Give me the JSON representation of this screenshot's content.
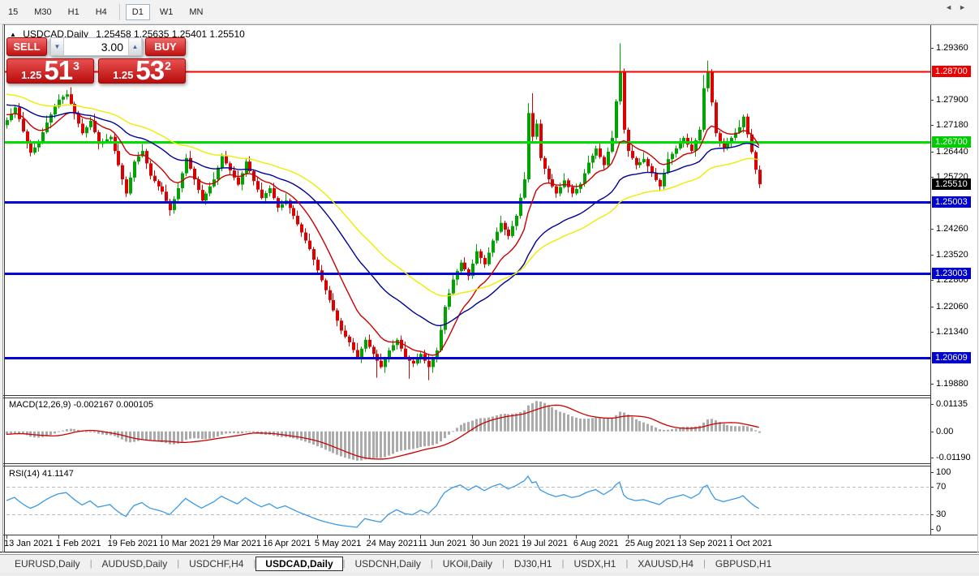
{
  "toolbar": {
    "timeframes": [
      {
        "label": "15",
        "active": false
      },
      {
        "label": "M30",
        "active": false
      },
      {
        "label": "H1",
        "active": false
      },
      {
        "label": "H4",
        "active": false
      },
      {
        "label": "D1",
        "active": true
      },
      {
        "label": "W1",
        "active": false
      },
      {
        "label": "MN",
        "active": false
      }
    ]
  },
  "chart": {
    "collapse_icon": "▲",
    "symbol_title": "USDCAD,Daily",
    "ohlc_line": "1.25458 1.25635 1.25401 1.25510"
  },
  "trade_panel": {
    "sell_label": "SELL",
    "buy_label": "BUY",
    "volume": "3.00",
    "spin_down_icon": "▼",
    "spin_up_icon": "▲",
    "sell_price_small": "1.25",
    "sell_price_big": "51",
    "sell_price_sup": "3",
    "buy_price_small": "1.25",
    "buy_price_big": "53",
    "buy_price_sup": "2"
  },
  "price_axis": {
    "ticks": [
      "1.29360",
      "1.27900",
      "1.27180",
      "1.26440",
      "1.25720",
      "1.24260",
      "1.23520",
      "1.22800",
      "1.22060",
      "1.21340",
      "1.19880"
    ],
    "flags": [
      {
        "text": "1.28700",
        "bg": "#EE0000"
      },
      {
        "text": "1.26700",
        "bg": "#00CC00"
      },
      {
        "text": "1.25510",
        "bg": "#000000"
      },
      {
        "text": "1.25003",
        "bg": "#0000CC"
      },
      {
        "text": "1.23003",
        "bg": "#0000CC"
      },
      {
        "text": "1.20609",
        "bg": "#0000CC"
      }
    ]
  },
  "indicator_macd": {
    "label": "MACD(12,26,9) -0.002167 0.000105",
    "axis": [
      "0.01135",
      "0.00",
      "-0.01190"
    ]
  },
  "indicator_rsi": {
    "label": "RSI(14) 41.1147",
    "axis": [
      "100",
      "70",
      "30",
      "0"
    ]
  },
  "tabs": {
    "items": [
      {
        "label": "EURUSD,Daily",
        "active": false
      },
      {
        "label": "AUDUSD,Daily",
        "active": false
      },
      {
        "label": "USDCHF,H4",
        "active": false
      },
      {
        "label": "USDCAD,Daily",
        "active": true
      },
      {
        "label": "USDCNH,Daily",
        "active": false
      },
      {
        "label": "UKOil,Daily",
        "active": false
      },
      {
        "label": "DJ30,H1",
        "active": false
      },
      {
        "label": "USDX,H1",
        "active": false
      },
      {
        "label": "XAUUSD,H4",
        "active": false
      },
      {
        "label": "GBPUSD,H1",
        "active": false
      }
    ],
    "prev_icon": "◄",
    "next_icon": "►"
  },
  "colors": {
    "up": "#00A400",
    "down": "#DD0000",
    "background": "#FFFFFF",
    "ma_fast": "#CC0000",
    "ma_mid": "#000099",
    "ma_slow": "#EDED00",
    "macd_hist": "#ABABAB",
    "macd_signal": "#CC0000",
    "rsi_line": "#3A99E8",
    "hline_red": "#FF0000",
    "hline_green": "#00DD00",
    "hline_blue": "#0000D8"
  },
  "chart_data": {
    "type": "candlestick",
    "title": "USDCAD,Daily",
    "ohlc_display": {
      "open": "1.25458",
      "high": "1.25635",
      "low": "1.25401",
      "close": "1.25510"
    },
    "x_labels": [
      "13 Jan 2021",
      "1 Feb 2021",
      "19 Feb 2021",
      "10 Mar 2021",
      "29 Mar 2021",
      "16 Apr 2021",
      "5 May 2021",
      "24 May 2021",
      "11 Jun 2021",
      "30 Jun 2021",
      "19 Jul 2021",
      "6 Aug 2021",
      "25 Aug 2021",
      "13 Sep 2021",
      "1 Oct 2021"
    ],
    "bars_per_label": 13,
    "y_axis_range": [
      1.1957,
      1.2998
    ],
    "horizontal_lines": [
      {
        "price": 1.287,
        "color": "#FF0000",
        "width": 2
      },
      {
        "price": 1.267,
        "color": "#00DD00",
        "width": 3
      },
      {
        "price": 1.25003,
        "color": "#0000D8",
        "width": 3
      },
      {
        "price": 1.23003,
        "color": "#0000D8",
        "width": 3
      },
      {
        "price": 1.20609,
        "color": "#0000D8",
        "width": 3
      }
    ],
    "moving_averages": [
      {
        "period": 13,
        "type": "ema",
        "color": "#CC0000",
        "seed": 1.275
      },
      {
        "period": 34,
        "type": "ema",
        "color": "#000099",
        "seed": 1.2778
      },
      {
        "period": 55,
        "type": "ema",
        "color": "#EDED00",
        "seed": 1.2808
      }
    ],
    "macd": {
      "fast": 12,
      "slow": 26,
      "signal": 9,
      "current_main": -0.002167,
      "current_signal": 0.000105
    },
    "rsi": {
      "period": 14,
      "levels": [
        70,
        30
      ],
      "current": 41.1147
    },
    "candles": [
      [
        1.2718,
        1.274,
        1.2708,
        1.2732
      ],
      [
        1.2732,
        1.2765,
        1.2727,
        1.275
      ],
      [
        1.275,
        1.2773,
        1.2738,
        1.2768
      ],
      [
        1.2768,
        1.278,
        1.2727,
        1.2735
      ],
      [
        1.2735,
        1.2755,
        1.2696,
        1.27
      ],
      [
        1.27,
        1.2706,
        1.2652,
        1.2668
      ],
      [
        1.2668,
        1.2676,
        1.263,
        1.264
      ],
      [
        1.264,
        1.267,
        1.2635,
        1.2655
      ],
      [
        1.2655,
        1.2677,
        1.2643,
        1.2672
      ],
      [
        1.2672,
        1.271,
        1.2664,
        1.2698
      ],
      [
        1.2698,
        1.2745,
        1.2694,
        1.2725
      ],
      [
        1.2725,
        1.2754,
        1.2709,
        1.2748
      ],
      [
        1.2748,
        1.2778,
        1.2738,
        1.277
      ],
      [
        1.277,
        1.2805,
        1.2765,
        1.279
      ],
      [
        1.279,
        1.2803,
        1.2778,
        1.2798
      ],
      [
        1.2798,
        1.2817,
        1.279,
        1.2805
      ],
      [
        1.2805,
        1.2825,
        1.2774,
        1.2778
      ],
      [
        1.2778,
        1.2784,
        1.2734,
        1.275
      ],
      [
        1.275,
        1.2758,
        1.2712,
        1.2722
      ],
      [
        1.2722,
        1.2737,
        1.269,
        1.2695
      ],
      [
        1.2695,
        1.2717,
        1.2683,
        1.2712
      ],
      [
        1.2712,
        1.2742,
        1.2704,
        1.273
      ],
      [
        1.273,
        1.275,
        1.2694,
        1.2698
      ],
      [
        1.2698,
        1.2704,
        1.2649,
        1.2665
      ],
      [
        1.2665,
        1.268,
        1.2655,
        1.2672
      ],
      [
        1.2672,
        1.2693,
        1.2667,
        1.2678
      ],
      [
        1.2678,
        1.269,
        1.2666,
        1.2685
      ],
      [
        1.2685,
        1.2697,
        1.2637,
        1.2645
      ],
      [
        1.2645,
        1.2665,
        1.2601,
        1.2605
      ],
      [
        1.2605,
        1.2611,
        1.2549,
        1.2565
      ],
      [
        1.2565,
        1.2573,
        1.2515,
        1.2525
      ],
      [
        1.2525,
        1.2585,
        1.252,
        1.257
      ],
      [
        1.257,
        1.262,
        1.2558,
        1.2615
      ],
      [
        1.2615,
        1.2642,
        1.2607,
        1.263
      ],
      [
        1.263,
        1.2665,
        1.2626,
        1.2645
      ],
      [
        1.2645,
        1.2651,
        1.2594,
        1.261
      ],
      [
        1.261,
        1.2618,
        1.2565,
        1.2575
      ],
      [
        1.2575,
        1.259,
        1.2555,
        1.256
      ],
      [
        1.256,
        1.2565,
        1.2533,
        1.2545
      ],
      [
        1.2545,
        1.2557,
        1.2522,
        1.253
      ],
      [
        1.253,
        1.255,
        1.25,
        1.2504
      ],
      [
        1.2504,
        1.251,
        1.2462,
        1.2478
      ],
      [
        1.2478,
        1.2517,
        1.2468,
        1.2509
      ],
      [
        1.2509,
        1.2555,
        1.2504,
        1.254
      ],
      [
        1.254,
        1.2587,
        1.2528,
        1.2582
      ],
      [
        1.2582,
        1.2637,
        1.2574,
        1.2625
      ],
      [
        1.2625,
        1.2645,
        1.2591,
        1.2595
      ],
      [
        1.2595,
        1.2601,
        1.2549,
        1.2565
      ],
      [
        1.2565,
        1.2573,
        1.2525,
        1.2535
      ],
      [
        1.2535,
        1.255,
        1.25,
        1.2505
      ],
      [
        1.2505,
        1.253,
        1.2493,
        1.2525
      ],
      [
        1.2525,
        1.2557,
        1.2517,
        1.2545
      ],
      [
        1.2545,
        1.2585,
        1.2541,
        1.2565
      ],
      [
        1.2565,
        1.2604,
        1.2549,
        1.2598
      ],
      [
        1.2598,
        1.2638,
        1.2588,
        1.263
      ],
      [
        1.263,
        1.2645,
        1.2605,
        1.261
      ],
      [
        1.261,
        1.2615,
        1.2578,
        1.259
      ],
      [
        1.259,
        1.2602,
        1.2562,
        1.257
      ],
      [
        1.257,
        1.259,
        1.2546,
        1.255
      ],
      [
        1.255,
        1.2588,
        1.2534,
        1.2582
      ],
      [
        1.2582,
        1.2623,
        1.2572,
        1.2615
      ],
      [
        1.2615,
        1.263,
        1.2583,
        1.2588
      ],
      [
        1.2588,
        1.2593,
        1.2548,
        1.256
      ],
      [
        1.256,
        1.2572,
        1.2528,
        1.2536
      ],
      [
        1.2536,
        1.2556,
        1.2508,
        1.2512
      ],
      [
        1.2512,
        1.2532,
        1.2496,
        1.2526
      ],
      [
        1.2526,
        1.2548,
        1.2516,
        1.254
      ],
      [
        1.254,
        1.2555,
        1.2507,
        1.2512
      ],
      [
        1.2512,
        1.2517,
        1.2473,
        1.2485
      ],
      [
        1.2485,
        1.2507,
        1.2477,
        1.2495
      ],
      [
        1.2495,
        1.2525,
        1.2491,
        1.2505
      ],
      [
        1.2505,
        1.2511,
        1.2468,
        1.2484
      ],
      [
        1.2484,
        1.2492,
        1.2452,
        1.2462
      ],
      [
        1.2462,
        1.2477,
        1.2433,
        1.2438
      ],
      [
        1.2438,
        1.2443,
        1.2403,
        1.2415
      ],
      [
        1.2415,
        1.2427,
        1.2384,
        1.2392
      ],
      [
        1.2392,
        1.2412,
        1.2364,
        1.2368
      ],
      [
        1.2368,
        1.2374,
        1.2322,
        1.2338
      ],
      [
        1.2338,
        1.2346,
        1.2298,
        1.2308
      ],
      [
        1.2308,
        1.2323,
        1.2275,
        1.228
      ],
      [
        1.228,
        1.2285,
        1.224,
        1.2252
      ],
      [
        1.2252,
        1.2264,
        1.2216,
        1.2224
      ],
      [
        1.2224,
        1.2244,
        1.2191,
        1.2195
      ],
      [
        1.2195,
        1.2201,
        1.215,
        1.2166
      ],
      [
        1.2166,
        1.2174,
        1.2128,
        1.2138
      ],
      [
        1.2138,
        1.2153,
        1.2116,
        1.2121
      ],
      [
        1.2121,
        1.2126,
        1.2093,
        1.2105
      ],
      [
        1.2105,
        1.2117,
        1.2075,
        1.2083
      ],
      [
        1.2083,
        1.2103,
        1.2058,
        1.2062
      ],
      [
        1.2062,
        1.2093,
        1.2046,
        1.2087
      ],
      [
        1.2087,
        1.212,
        1.2077,
        1.2112
      ],
      [
        1.2112,
        1.2127,
        1.2087,
        1.2092
      ],
      [
        1.2092,
        1.2097,
        1.206,
        1.2072
      ],
      [
        1.2072,
        1.2084,
        1.2005,
        1.2053
      ],
      [
        1.2053,
        1.2073,
        1.2031,
        1.2035
      ],
      [
        1.2035,
        1.2064,
        1.2019,
        1.2058
      ],
      [
        1.2058,
        1.209,
        1.2048,
        1.2082
      ],
      [
        1.2082,
        1.2112,
        1.2077,
        1.2097
      ],
      [
        1.2097,
        1.2117,
        1.2085,
        1.2112
      ],
      [
        1.2112,
        1.2124,
        1.2079,
        1.2087
      ],
      [
        1.2087,
        1.2107,
        1.2058,
        1.2062
      ],
      [
        1.2062,
        1.2068,
        1.2002,
        1.2053
      ],
      [
        1.2053,
        1.2061,
        1.2035,
        1.2045
      ],
      [
        1.2045,
        1.2073,
        1.204,
        1.2058
      ],
      [
        1.2058,
        1.2077,
        1.2046,
        1.2072
      ],
      [
        1.2072,
        1.2084,
        1.2045,
        1.2053
      ],
      [
        1.2053,
        1.2073,
        1.1998,
        1.2035
      ],
      [
        1.2035,
        1.2064,
        1.2019,
        1.2058
      ],
      [
        1.2058,
        1.209,
        1.2048,
        1.2082
      ],
      [
        1.2082,
        1.2155,
        1.2077,
        1.214
      ],
      [
        1.214,
        1.221,
        1.2128,
        1.2205
      ],
      [
        1.2205,
        1.2255,
        1.2197,
        1.2243
      ],
      [
        1.2243,
        1.2302,
        1.2239,
        1.2282
      ],
      [
        1.2282,
        1.2312,
        1.2266,
        1.2306
      ],
      [
        1.2306,
        1.2338,
        1.2296,
        1.233
      ],
      [
        1.233,
        1.2345,
        1.2306,
        1.2311
      ],
      [
        1.2311,
        1.2316,
        1.228,
        1.2292
      ],
      [
        1.2292,
        1.2339,
        1.2284,
        1.2327
      ],
      [
        1.2327,
        1.2382,
        1.2323,
        1.2362
      ],
      [
        1.2362,
        1.2368,
        1.2327,
        1.2343
      ],
      [
        1.2343,
        1.2351,
        1.2315,
        1.2325
      ],
      [
        1.2325,
        1.2373,
        1.232,
        1.2358
      ],
      [
        1.2358,
        1.2397,
        1.2346,
        1.2392
      ],
      [
        1.2392,
        1.2429,
        1.2384,
        1.2417
      ],
      [
        1.2417,
        1.2462,
        1.2413,
        1.2442
      ],
      [
        1.2442,
        1.2448,
        1.2407,
        1.2423
      ],
      [
        1.2423,
        1.2431,
        1.2395,
        1.2405
      ],
      [
        1.2405,
        1.2448,
        1.24,
        1.2433
      ],
      [
        1.2433,
        1.2467,
        1.2421,
        1.2462
      ],
      [
        1.2462,
        1.2525,
        1.2454,
        1.2513
      ],
      [
        1.2513,
        1.2585,
        1.2509,
        1.2565
      ],
      [
        1.2565,
        1.278,
        1.2556,
        1.2752
      ],
      [
        1.2752,
        1.2808,
        1.2672,
        1.2685
      ],
      [
        1.2685,
        1.2734,
        1.2677,
        1.2722
      ],
      [
        1.2722,
        1.2734,
        1.2617,
        1.2625
      ],
      [
        1.2625,
        1.2631,
        1.2579,
        1.2595
      ],
      [
        1.2595,
        1.2603,
        1.2555,
        1.2565
      ],
      [
        1.2565,
        1.258,
        1.254,
        1.2545
      ],
      [
        1.2545,
        1.255,
        1.2513,
        1.2525
      ],
      [
        1.2525,
        1.2555,
        1.2517,
        1.2543
      ],
      [
        1.2543,
        1.2582,
        1.2539,
        1.2562
      ],
      [
        1.2562,
        1.2568,
        1.2527,
        1.2543
      ],
      [
        1.2543,
        1.2551,
        1.2515,
        1.2525
      ],
      [
        1.2525,
        1.2553,
        1.252,
        1.2538
      ],
      [
        1.2538,
        1.2557,
        1.2526,
        1.2552
      ],
      [
        1.2552,
        1.2594,
        1.2544,
        1.2582
      ],
      [
        1.2582,
        1.2632,
        1.2578,
        1.2612
      ],
      [
        1.2612,
        1.2638,
        1.2596,
        1.2632
      ],
      [
        1.2632,
        1.266,
        1.2622,
        1.2652
      ],
      [
        1.2652,
        1.2667,
        1.2623,
        1.2628
      ],
      [
        1.2628,
        1.2633,
        1.2593,
        1.2605
      ],
      [
        1.2605,
        1.2655,
        1.2597,
        1.2643
      ],
      [
        1.2643,
        1.2702,
        1.2639,
        1.2682
      ],
      [
        1.2682,
        1.2791,
        1.2666,
        1.2785
      ],
      [
        1.2785,
        1.2949,
        1.2775,
        1.287
      ],
      [
        1.287,
        1.2878,
        1.2694,
        1.2705
      ],
      [
        1.2705,
        1.2711,
        1.2629,
        1.2645
      ],
      [
        1.2645,
        1.266,
        1.262,
        1.2625
      ],
      [
        1.2625,
        1.263,
        1.2593,
        1.2605
      ],
      [
        1.2605,
        1.2625,
        1.2597,
        1.2613
      ],
      [
        1.2613,
        1.2642,
        1.2609,
        1.2622
      ],
      [
        1.2622,
        1.2628,
        1.2586,
        1.2602
      ],
      [
        1.2602,
        1.261,
        1.2572,
        1.2582
      ],
      [
        1.2582,
        1.2597,
        1.2558,
        1.2563
      ],
      [
        1.2563,
        1.2568,
        1.2533,
        1.2545
      ],
      [
        1.2545,
        1.2595,
        1.2537,
        1.2583
      ],
      [
        1.2583,
        1.2642,
        1.2579,
        1.2622
      ],
      [
        1.2622,
        1.2643,
        1.2606,
        1.2637
      ],
      [
        1.2637,
        1.266,
        1.2627,
        1.2652
      ],
      [
        1.2652,
        1.2682,
        1.2647,
        1.2667
      ],
      [
        1.2667,
        1.2687,
        1.2655,
        1.2682
      ],
      [
        1.2682,
        1.2694,
        1.2655,
        1.2663
      ],
      [
        1.2663,
        1.2683,
        1.2641,
        1.2645
      ],
      [
        1.2645,
        1.2681,
        1.2629,
        1.2675
      ],
      [
        1.2675,
        1.2713,
        1.2665,
        1.2705
      ],
      [
        1.2705,
        1.286,
        1.2698,
        1.2822
      ],
      [
        1.2822,
        1.29,
        1.2812,
        1.2868
      ],
      [
        1.2868,
        1.2876,
        1.2772,
        1.2782
      ],
      [
        1.2782,
        1.279,
        1.2685,
        1.2695
      ],
      [
        1.2695,
        1.2701,
        1.2657,
        1.2673
      ],
      [
        1.2673,
        1.2681,
        1.2642,
        1.2652
      ],
      [
        1.2652,
        1.2682,
        1.2647,
        1.2667
      ],
      [
        1.2667,
        1.2687,
        1.2655,
        1.2682
      ],
      [
        1.2682,
        1.2709,
        1.2674,
        1.2697
      ],
      [
        1.2697,
        1.2732,
        1.2693,
        1.2712
      ],
      [
        1.2712,
        1.2748,
        1.2696,
        1.2742
      ],
      [
        1.2742,
        1.275,
        1.2682,
        1.2692
      ],
      [
        1.2692,
        1.2707,
        1.2637,
        1.2642
      ],
      [
        1.2642,
        1.2647,
        1.258,
        1.2592
      ],
      [
        1.2592,
        1.2604,
        1.254,
        1.2551
      ]
    ]
  }
}
